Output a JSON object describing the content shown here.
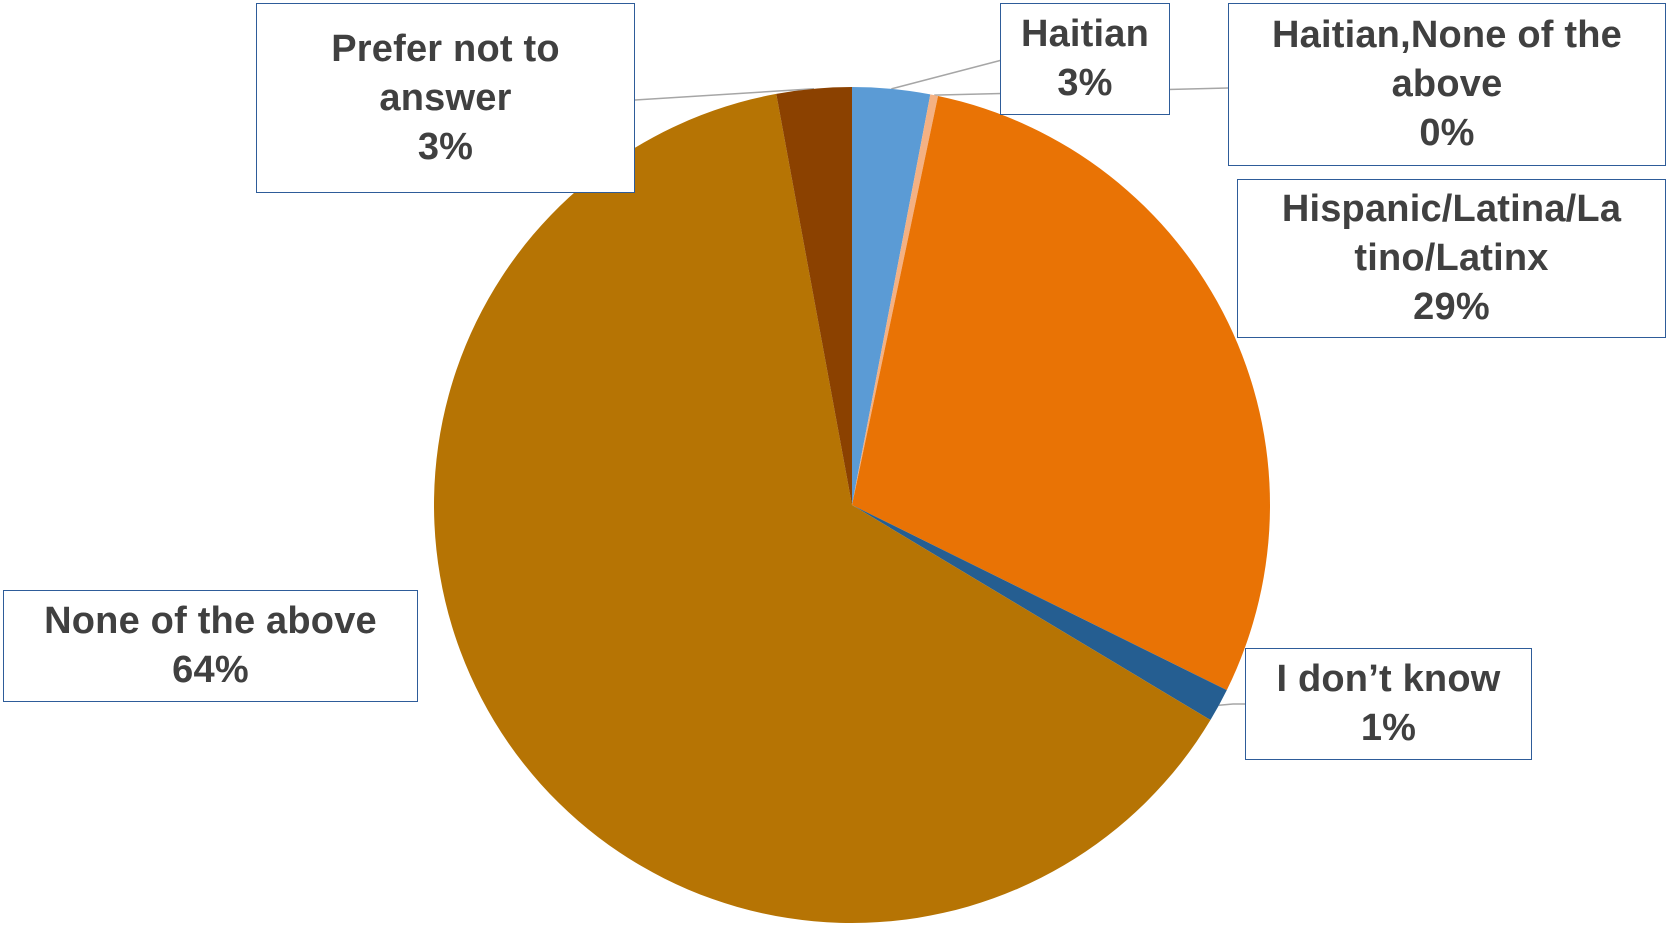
{
  "chart_data": {
    "type": "pie",
    "title": "",
    "start_angle_deg": 0,
    "direction": "clockwise",
    "slices": [
      {
        "label": "Haitian",
        "value": 3,
        "value_label": "3%",
        "color": "#5b9bd5",
        "label_lines": [
          "Haitian"
        ]
      },
      {
        "label": "Haitian,None of the above",
        "value": 0.3,
        "value_label": "0%",
        "color": "#f4b183",
        "label_lines": [
          "Haitian,None of the",
          "above"
        ]
      },
      {
        "label": "Hispanic/Latina/Latino/Latinx",
        "value": 29,
        "value_label": "29%",
        "color": "#e97305",
        "label_lines": [
          "Hispanic/Latina/La",
          "tino/Latinx"
        ]
      },
      {
        "label": "I don’t know",
        "value": 1.3,
        "value_label": "1%",
        "color": "#255e91",
        "label_lines": [
          "I don’t know"
        ]
      },
      {
        "label": "None of the above",
        "value": 63.5,
        "value_label": "64%",
        "color": "#b67404",
        "label_lines": [
          "None of the above"
        ]
      },
      {
        "label": "Prefer not to answer",
        "value": 2.9,
        "value_label": "3%",
        "color": "#8b4100",
        "label_lines": [
          "Prefer not to",
          "answer"
        ]
      }
    ]
  }
}
